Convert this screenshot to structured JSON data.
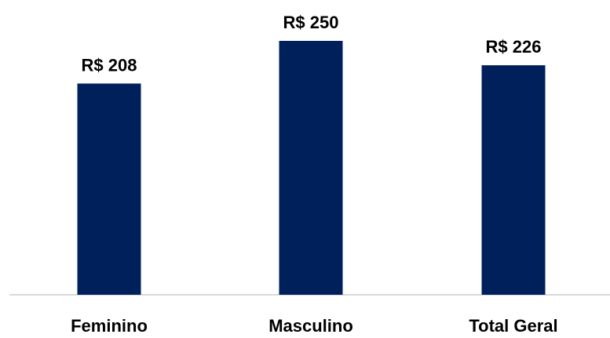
{
  "chart_data": {
    "type": "bar",
    "categories": [
      "Feminino",
      "Masculino",
      "Total Geral"
    ],
    "values": [
      208,
      250,
      226
    ],
    "data_labels": [
      "R$ 208",
      "R$ 250",
      "R$ 226"
    ],
    "title": "",
    "xlabel": "",
    "ylabel": "",
    "ylim": [
      0,
      250
    ],
    "grid": false,
    "legend": "none"
  },
  "colors": {
    "bar": "#00205B",
    "axis": "#D9D9D9",
    "text": "#000000"
  }
}
